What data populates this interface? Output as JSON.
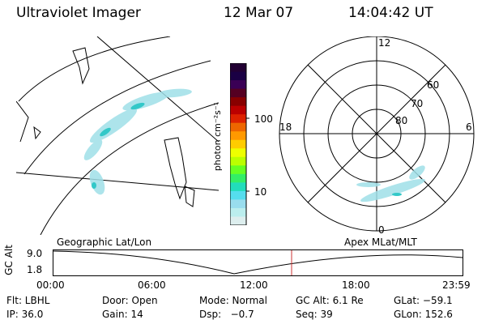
{
  "header": {
    "title": "Ultraviolet Imager",
    "date": "12 Mar 07",
    "time": "14:04:42 UT"
  },
  "colorbar": {
    "unit_label": "photon cm⁻²s⁻¹",
    "ticks": [
      "100",
      "10"
    ],
    "colors": [
      "#220033",
      "#1a0044",
      "#3a0055",
      "#550022",
      "#880000",
      "#bb0000",
      "#dd2200",
      "#ee6600",
      "#ff9900",
      "#ffcc00",
      "#eeff00",
      "#bbff00",
      "#66ff22",
      "#33ee66",
      "#22ddbb",
      "#55ddee",
      "#99ddee",
      "#bbeeee",
      "#ddeeee"
    ]
  },
  "polar": {
    "labels": {
      "top": "12",
      "bottom": "0",
      "left": "18",
      "right": "6"
    },
    "lat_labels": [
      "60",
      "70",
      "80"
    ]
  },
  "timeline": {
    "left_label": "Geographic Lat/Lon",
    "right_label": "Apex MLat/MLT",
    "y_axis_label": "GC Alt",
    "y_ticks": [
      "9.0",
      "1.8"
    ],
    "x_ticks": [
      "00:00",
      "06:00",
      "12:00",
      "18:00",
      "23:59"
    ],
    "marker_color": "#cc3333"
  },
  "metadata": {
    "row1": {
      "filter": "Flt: LBHL",
      "door": "Door: Open",
      "mode": "Mode: Normal",
      "gc_alt": "GC Alt: 6.1 Re",
      "glat": "GLat: −59.1"
    },
    "row2": {
      "ip": "IP: 36.0",
      "gain": "Gain: 14",
      "dsp": "Dsp:   −0.7",
      "seq": "Seq: 39",
      "glon": "GLon: 152.6"
    }
  }
}
